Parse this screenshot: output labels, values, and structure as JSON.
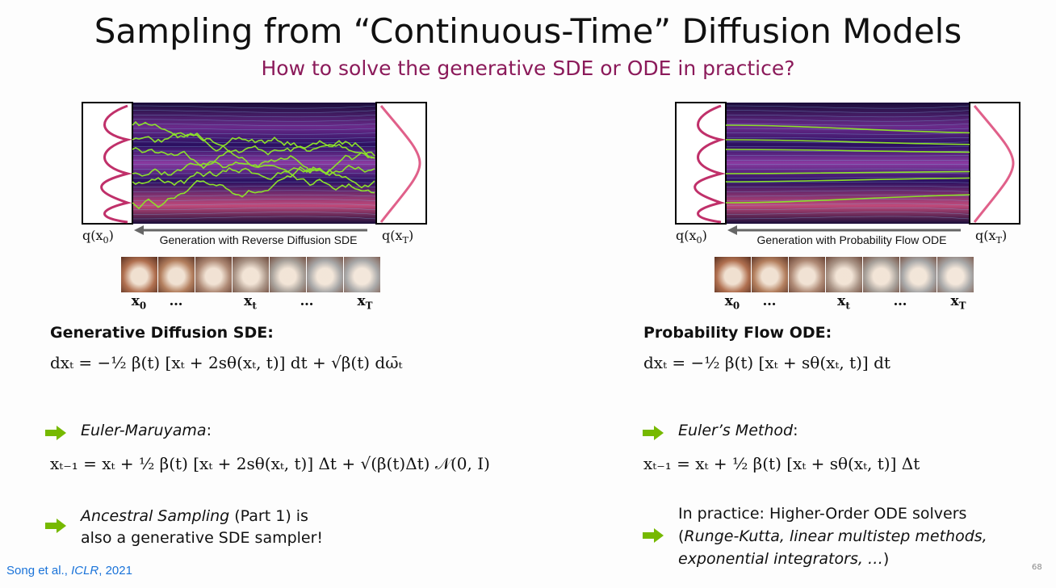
{
  "title": "Sampling from “Continuous-Time” Diffusion Models",
  "subtitle": "How to solve the generative SDE or ODE in practice?",
  "panels": [
    {
      "kind": "sde",
      "q_start": {
        "base": "q(x",
        "sub": "0",
        "close": ")"
      },
      "q_end": {
        "base": "q(x",
        "sub": "T",
        "close": ")"
      },
      "caption": "Generation with Reverse Diffusion SDE",
      "frame_labels": [
        {
          "base": "x",
          "sub": "0"
        },
        {
          "base": "…"
        },
        {
          "base": "x",
          "sub": "t"
        },
        {
          "base": "…"
        },
        {
          "base": "x",
          "sub": "T"
        }
      ],
      "heading": "Generative Diffusion SDE:",
      "equation": "dxₜ = −½ β(t) [xₜ + 2sθ(xₜ, t)] dt + √β(t) dω̄ₜ",
      "method": {
        "name": "Euler-Maruyama",
        "suffix": ":"
      },
      "update": "xₜ₋₁ = xₜ + ½ β(t) [xₜ + 2sθ(xₜ, t)] Δt + √(β(t)Δt) 𝒩(0, I)",
      "note": {
        "italic": "Ancestral Sampling",
        "rest": " (Part 1) is",
        "line2": "also a generative SDE sampler!"
      }
    },
    {
      "kind": "ode",
      "q_start": {
        "base": "q(x",
        "sub": "0",
        "close": ")"
      },
      "q_end": {
        "base": "q(x",
        "sub": "T",
        "close": ")"
      },
      "caption": "Generation with Probability Flow ODE",
      "frame_labels": [
        {
          "base": "x",
          "sub": "0"
        },
        {
          "base": "…"
        },
        {
          "base": "x",
          "sub": "t"
        },
        {
          "base": "…"
        },
        {
          "base": "x",
          "sub": "T"
        }
      ],
      "heading": "Probability Flow ODE:",
      "equation": "dxₜ = −½ β(t) [xₜ + sθ(xₜ, t)] dt",
      "method": {
        "name": "Euler’s Method",
        "suffix": ":"
      },
      "update": "xₜ₋₁ = xₜ + ½ β(t) [xₜ + sθ(xₜ, t)] Δt",
      "note": {
        "line1": "In practice: Higher-Order ODE solvers",
        "open": "(",
        "italic1": "Runge-Kutta, linear multistep methods,",
        "italic2": "exponential integrators, …",
        "close": ")"
      }
    }
  ],
  "citation": {
    "authors": "Song et al., ",
    "venue": "ICLR",
    "year": ", 2021"
  },
  "page_number": "68"
}
